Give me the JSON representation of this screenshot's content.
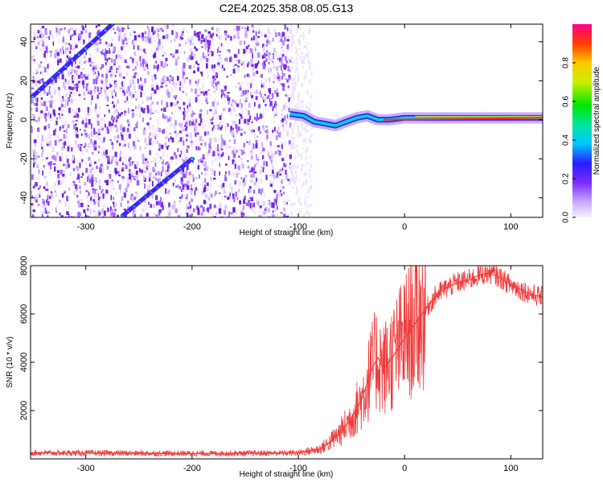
{
  "title": "C2E4.2025.358.08.05.G13",
  "chart_data": [
    {
      "type": "heatmap",
      "name": "spectrogram",
      "xlabel": "Height of straight line (km)",
      "ylabel": "Frequency (Hz)",
      "xlim": [
        -352,
        130
      ],
      "ylim": [
        -50,
        49
      ],
      "xticks": [
        -300,
        -200,
        -100,
        0,
        100
      ],
      "yticks": [
        -40,
        -20,
        0,
        20,
        40
      ],
      "colorbar": {
        "label": "Normalized spectral amplitude",
        "range": [
          0,
          1
        ],
        "ticks": [
          0.0,
          0.2,
          0.4,
          0.6,
          0.8
        ]
      },
      "features": [
        {
          "name": "carrier-line",
          "x": [
            -108,
            -95,
            -85,
            -75,
            -65,
            -55,
            -45,
            -35,
            -25,
            -15,
            0,
            40,
            90,
            130
          ],
          "y": [
            3,
            2,
            -1,
            -2,
            -3,
            -1,
            1,
            2,
            0,
            0,
            1,
            1,
            1,
            1
          ]
        },
        {
          "name": "upper-diagonal-track",
          "x": [
            -350,
            -275
          ],
          "y": [
            12,
            49
          ]
        },
        {
          "name": "lower-diagonal-track",
          "x": [
            -265,
            -200
          ],
          "y": [
            -49,
            -20
          ]
        }
      ]
    },
    {
      "type": "line",
      "name": "snr",
      "xlabel": "Height of straight line (km)",
      "ylabel": "SNR (10 * v/v)",
      "xlim": [
        -352,
        130
      ],
      "ylim": [
        0,
        8000
      ],
      "xticks": [
        -300,
        -200,
        -100,
        0,
        100
      ],
      "yticks": [
        2000,
        4000,
        6000,
        8000
      ],
      "series": [
        {
          "name": "SNR",
          "color": "#ef3b3b",
          "x": [
            -352,
            -300,
            -250,
            -200,
            -150,
            -100,
            -80,
            -70,
            -60,
            -50,
            -40,
            -30,
            -25,
            -20,
            -10,
            0,
            10,
            20,
            30,
            40,
            50,
            60,
            70,
            80,
            90,
            100,
            110,
            120,
            130
          ],
          "y": [
            250,
            240,
            230,
            220,
            230,
            250,
            400,
            700,
            1100,
            1700,
            2500,
            3800,
            4200,
            3700,
            4300,
            5000,
            5600,
            6200,
            6800,
            7100,
            7300,
            7400,
            7600,
            7700,
            7500,
            7200,
            7000,
            6800,
            6700
          ]
        }
      ]
    }
  ]
}
